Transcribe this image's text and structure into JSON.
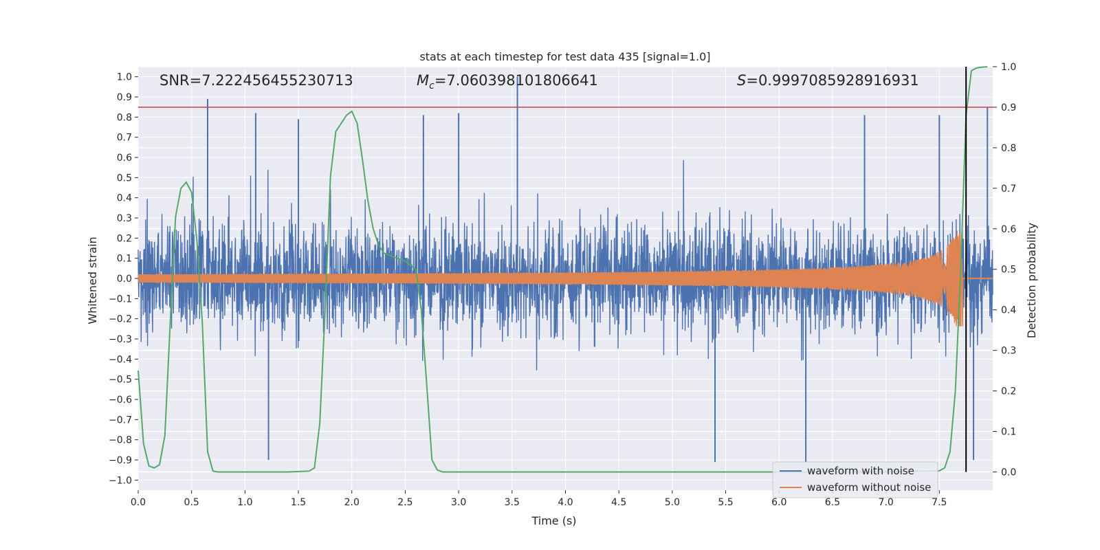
{
  "chart_data": {
    "type": "line",
    "title": "stats at each timestep for test data 435 [signal=1.0]",
    "xlabel": "Time (s)",
    "ylabel": "Whitened strain",
    "y2label": "Detection probability",
    "xlim": [
      0.0,
      8.0
    ],
    "ylim": [
      -1.05,
      1.05
    ],
    "y2lim": [
      -0.045,
      1.0
    ],
    "x_ticks": [
      0.0,
      0.5,
      1.0,
      1.5,
      2.0,
      2.5,
      3.0,
      3.5,
      4.0,
      4.5,
      5.0,
      5.5,
      6.0,
      6.5,
      7.0,
      7.5
    ],
    "x_tick_labels": [
      "0.0",
      "0.5",
      "1.0",
      "1.5",
      "2.0",
      "2.5",
      "3.0",
      "3.5",
      "4.0",
      "4.5",
      "5.0",
      "5.5",
      "6.0",
      "6.5",
      "7.0",
      "7.5"
    ],
    "y_ticks": [
      1.0,
      0.9,
      0.8,
      0.7,
      0.6,
      0.5,
      0.4,
      0.3,
      0.2,
      0.1,
      0.0,
      -0.1,
      -0.2,
      -0.3,
      -0.4,
      -0.5,
      -0.6,
      -0.7,
      -0.8,
      -0.9,
      -1.0
    ],
    "y_tick_labels": [
      "1.0",
      "0.9",
      "0.8",
      "0.7",
      "0.6",
      "0.5",
      "0.4",
      "0.3",
      "0.2",
      "0.1",
      "0.0",
      "−0.1",
      "−0.2",
      "−0.3",
      "−0.4",
      "−0.5",
      "−0.6",
      "−0.7",
      "−0.8",
      "−0.9",
      "−1.0"
    ],
    "y2_ticks": [
      1.0,
      0.9,
      0.8,
      0.7,
      0.6,
      0.5,
      0.4,
      0.3,
      0.2,
      0.1,
      0.0
    ],
    "y2_tick_labels": [
      "1.0",
      "0.9",
      "0.8",
      "0.7",
      "0.6",
      "0.5",
      "0.4",
      "0.3",
      "0.2",
      "0.1",
      "0.0"
    ],
    "annotations": {
      "snr": "SNR=7.222456455230713",
      "mc_symbol": "M",
      "mc_sub": "c",
      "mc_value": "=7.060398101806641",
      "s_symbol": "S",
      "s_value": "=0.9997085928916931"
    },
    "threshold_line": {
      "y2": 0.9,
      "color": "#c44e52"
    },
    "vertical_marker": {
      "x": 7.75,
      "y2_range": [
        0.0,
        1.0
      ],
      "color": "#000000"
    },
    "series": [
      {
        "name": "waveform with noise",
        "color": "#4c72b0",
        "axis": "left",
        "description": "whitened noisy strain, amplitude mostly within ±0.5 with spikes up to ~1.0",
        "x_range": [
          0.0,
          8.0
        ],
        "peaks": [
          {
            "x": 0.65,
            "y": 0.89
          },
          {
            "x": 1.1,
            "y": 0.82
          },
          {
            "x": 1.5,
            "y": 0.79
          },
          {
            "x": 2.67,
            "y": 0.81
          },
          {
            "x": 3.0,
            "y": 0.82
          },
          {
            "x": 3.55,
            "y": 1.0
          },
          {
            "x": 6.8,
            "y": 0.81
          },
          {
            "x": 7.5,
            "y": 0.81
          },
          {
            "x": 7.95,
            "y": 0.85
          },
          {
            "x": 1.22,
            "y": -0.9
          },
          {
            "x": 5.4,
            "y": -0.91
          },
          {
            "x": 6.25,
            "y": -0.91
          },
          {
            "x": 7.82,
            "y": -0.9
          }
        ]
      },
      {
        "name": "waveform without noise",
        "color": "#dd8452",
        "axis": "left",
        "description": "chirp: amplitude ~0.02 growing to ~0.24 near merger at t≈7.72 s, then ≈0",
        "x_range": [
          0.0,
          8.0
        ],
        "amplitude_start": 0.02,
        "amplitude_peak": 0.24,
        "merger_time": 7.72
      },
      {
        "name": "detection probability",
        "color": "#55a868",
        "axis": "right",
        "x": [
          0.0,
          0.05,
          0.1,
          0.15,
          0.2,
          0.25,
          0.3,
          0.35,
          0.4,
          0.45,
          0.5,
          0.55,
          0.6,
          0.65,
          0.7,
          0.75,
          0.8,
          0.9,
          1.0,
          1.2,
          1.4,
          1.6,
          1.65,
          1.7,
          1.75,
          1.8,
          1.85,
          1.9,
          1.95,
          2.0,
          2.05,
          2.1,
          2.15,
          2.2,
          2.25,
          2.3,
          2.4,
          2.5,
          2.6,
          2.65,
          2.7,
          2.75,
          2.8,
          2.85,
          2.9,
          3.0,
          3.5,
          4.0,
          5.0,
          6.0,
          7.0,
          7.5,
          7.55,
          7.6,
          7.65,
          7.7,
          7.75,
          7.8,
          7.85,
          7.9,
          7.95
        ],
        "y": [
          0.25,
          0.07,
          0.015,
          0.01,
          0.018,
          0.09,
          0.37,
          0.63,
          0.7,
          0.715,
          0.69,
          0.57,
          0.37,
          0.05,
          0.002,
          0.0,
          0.0,
          0.0,
          0.0,
          0.0,
          0.0,
          0.002,
          0.01,
          0.12,
          0.4,
          0.73,
          0.84,
          0.86,
          0.88,
          0.89,
          0.86,
          0.77,
          0.67,
          0.6,
          0.56,
          0.54,
          0.53,
          0.52,
          0.5,
          0.4,
          0.22,
          0.03,
          0.005,
          0.0,
          0.0,
          0.0,
          0.0,
          0.0,
          0.0,
          0.0,
          0.0,
          0.003,
          0.01,
          0.05,
          0.2,
          0.5,
          0.88,
          0.99,
          0.997,
          0.999,
          0.9997
        ]
      }
    ],
    "legend": {
      "position": "lower-right",
      "entries": [
        {
          "label": "waveform with noise",
          "color": "#4c72b0"
        },
        {
          "label": "waveform without noise",
          "color": "#dd8452"
        }
      ]
    }
  }
}
